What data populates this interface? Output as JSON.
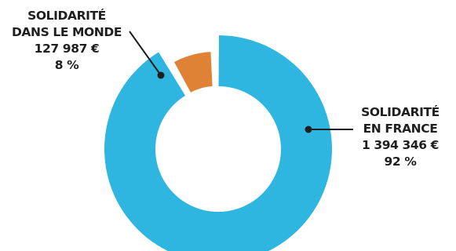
{
  "colors": {
    "france": "#2fb6e0",
    "world": "#e08235",
    "leader": "#1f1f1f",
    "background": "#ffffff"
  },
  "chart_data": {
    "type": "pie",
    "variant": "donut",
    "title": "",
    "slices": [
      {
        "name_lines": [
          "SOLIDARITÉ",
          "EN FRANCE"
        ],
        "amount_label": "1 394 346 €",
        "percent_label": "92 %",
        "value": 1394346,
        "percent": 92,
        "color_key": "france",
        "exploded": false
      },
      {
        "name_lines": [
          "SOLIDARITÉ",
          "DANS LE MONDE"
        ],
        "amount_label": "127 987 €",
        "percent_label": "8 %",
        "value": 127987,
        "percent": 8,
        "color_key": "world",
        "exploded": true
      }
    ]
  }
}
